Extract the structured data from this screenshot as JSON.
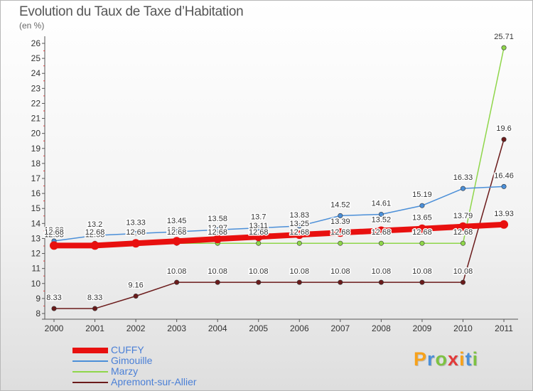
{
  "title": "Evolution du Taux de Taxe d’Habitation",
  "subtitle": "(en %)",
  "logo": {
    "text": "Proxiti",
    "letter_colors": [
      "#f7a21b",
      "#4b8fd8",
      "#7dc242",
      "#e23a3a",
      "#f7a21b",
      "#4b8fd8",
      "#7dc242"
    ]
  },
  "chart_data": {
    "type": "line",
    "x": [
      "2000",
      "2001",
      "2002",
      "2003",
      "2004",
      "2005",
      "2006",
      "2007",
      "2008",
      "2009",
      "2010",
      "2011"
    ],
    "ylim": [
      8,
      26
    ],
    "yticks": [
      "8",
      "9",
      "10",
      "11",
      "12",
      "13",
      "14",
      "15",
      "16",
      "17",
      "18",
      "19",
      "20",
      "21",
      "22",
      "23",
      "24",
      "25",
      "26"
    ],
    "grid": false,
    "legend_position": "bottom-left",
    "series": [
      {
        "name": "CUFFY",
        "color": "#e8100f",
        "values": [
          12.53,
          12.53,
          12.68,
          12.82,
          12.97,
          13.11,
          13.25,
          13.39,
          13.52,
          13.65,
          13.79,
          13.93
        ],
        "labels": [
          "12.53",
          "12.53",
          "12.68",
          "12.82",
          "12.97",
          "13.11",
          "13.25",
          "13.39",
          "13.52",
          "13.65",
          "13.79",
          "13.93"
        ]
      },
      {
        "name": "Gimouille",
        "color": "#4b8fd8",
        "values": [
          12.83,
          13.2,
          13.33,
          13.45,
          13.58,
          13.7,
          13.83,
          14.52,
          14.61,
          15.19,
          16.33,
          16.46
        ],
        "labels": [
          "12.83",
          "13.2",
          "13.33",
          "13.45",
          "13.58",
          "13.7",
          "13.83",
          "14.52",
          "14.61",
          "15.19",
          "16.33",
          "16.46"
        ]
      },
      {
        "name": "Marzy",
        "color": "#8fd64a",
        "values": [
          12.68,
          12.68,
          12.68,
          12.68,
          12.68,
          12.68,
          12.68,
          12.68,
          12.68,
          12.68,
          12.68,
          25.71
        ],
        "labels": [
          "12.68",
          "12.68",
          "12.68",
          "12.68",
          "12.68",
          "12.68",
          "12.68",
          "12.68",
          "12.68",
          "12.68",
          "12.68",
          "25.71"
        ]
      },
      {
        "name": "Apremont-sur-Allier",
        "color": "#6b1b1b",
        "values": [
          8.33,
          8.33,
          9.16,
          10.08,
          10.08,
          10.08,
          10.08,
          10.08,
          10.08,
          10.08,
          10.08,
          19.6
        ],
        "labels": [
          "8.33",
          "8.33",
          "9.16",
          "10.08",
          "10.08",
          "10.08",
          "10.08",
          "10.08",
          "10.08",
          "10.08",
          "10.08",
          "19.6"
        ]
      }
    ]
  }
}
